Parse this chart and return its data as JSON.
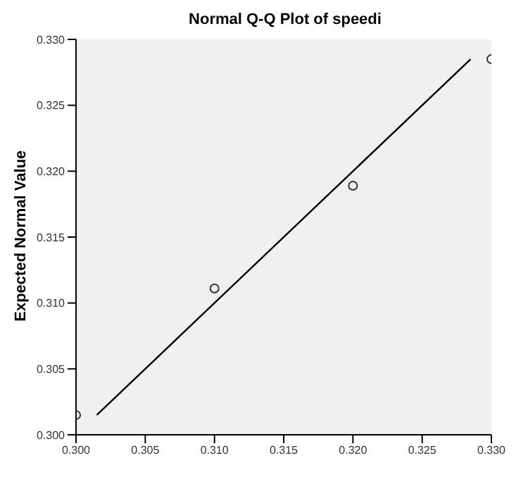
{
  "chart_data": {
    "type": "scatter",
    "title": "Normal Q-Q Plot of speedi",
    "ylabel": "Expected Normal Value",
    "xlim": [
      0.3,
      0.33
    ],
    "ylim": [
      0.3,
      0.33
    ],
    "xticks": [
      {
        "value": 0.3,
        "label": "0.300"
      },
      {
        "value": 0.305,
        "label": "0.305"
      },
      {
        "value": 0.31,
        "label": "0.310"
      },
      {
        "value": 0.315,
        "label": "0.315"
      },
      {
        "value": 0.32,
        "label": "0.320"
      },
      {
        "value": 0.325,
        "label": "0.325"
      },
      {
        "value": 0.33,
        "label": "0.330"
      }
    ],
    "yticks": [
      {
        "value": 0.3,
        "label": "0.300"
      },
      {
        "value": 0.305,
        "label": "0.305"
      },
      {
        "value": 0.31,
        "label": "0.310"
      },
      {
        "value": 0.315,
        "label": "0.315"
      },
      {
        "value": 0.32,
        "label": "0.320"
      },
      {
        "value": 0.325,
        "label": "0.325"
      },
      {
        "value": 0.33,
        "label": "0.330"
      }
    ],
    "grid": false,
    "legend": false,
    "series": [
      {
        "color": "#333333",
        "marker": "circle",
        "x": [
          0.3,
          0.31,
          0.32,
          0.33
        ],
        "values": [
          0.3015,
          0.3111,
          0.3189,
          0.3285
        ]
      },
      {
        "type": "line",
        "color": "#000000",
        "marker": "none",
        "line_style": "solid",
        "x": [
          0.3015,
          0.3285
        ],
        "values": [
          0.3015,
          0.3285
        ]
      }
    ]
  }
}
